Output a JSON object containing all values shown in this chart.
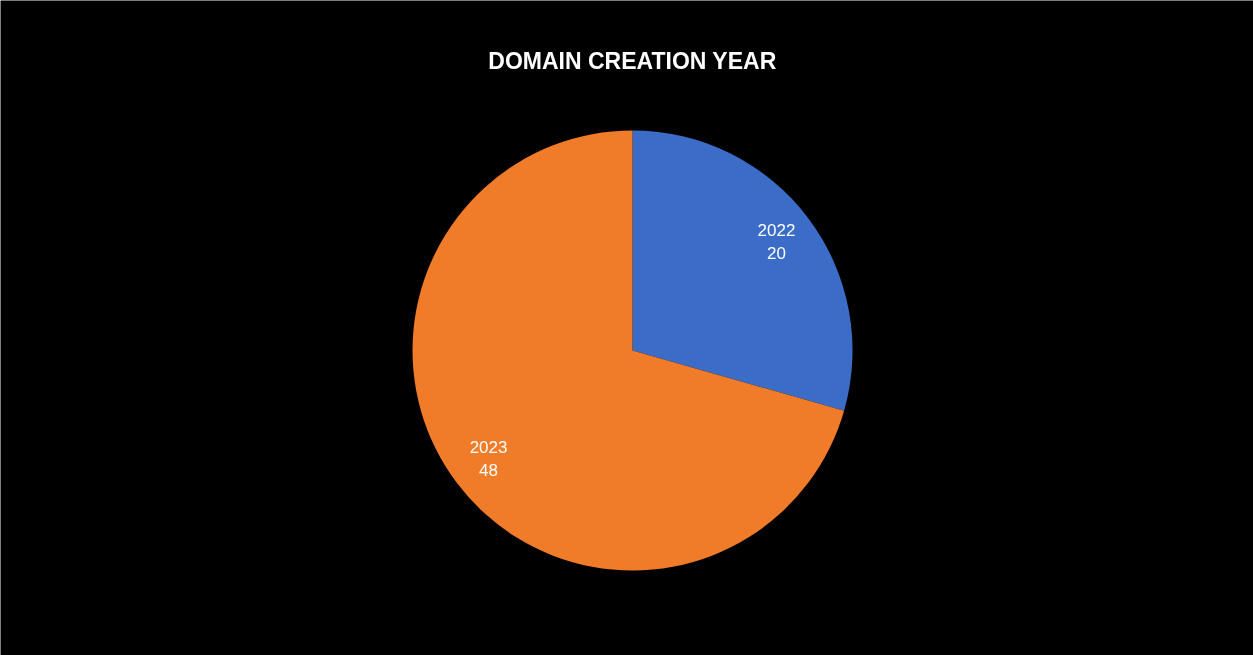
{
  "chart_data": {
    "type": "pie",
    "title": "DOMAIN CREATION YEAR",
    "categories": [
      "2022",
      "2023"
    ],
    "values": [
      20,
      48
    ],
    "colors": [
      "#3b6cc7",
      "#f07b28"
    ],
    "data_labels": true
  }
}
